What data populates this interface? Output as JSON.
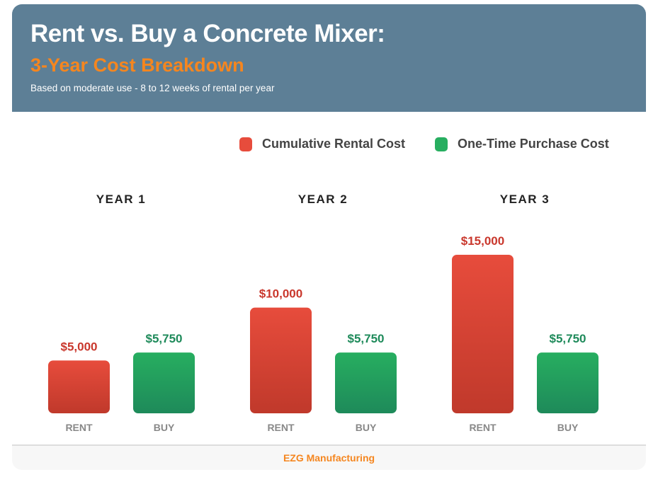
{
  "header": {
    "title": "Rent vs. Buy a Concrete Mixer:",
    "subtitle": "3-Year Cost Breakdown",
    "note": "Based on moderate use - 8 to 12 weeks of rental per year"
  },
  "footer": {
    "brand": "EZG Manufacturing"
  },
  "chart_data": {
    "type": "bar",
    "categories": [
      "YEAR 1",
      "YEAR 2",
      "YEAR 3"
    ],
    "bar_labels": [
      "RENT",
      "BUY"
    ],
    "series": [
      {
        "name": "Cumulative Rental Cost",
        "values": [
          5000,
          10000,
          15000
        ],
        "value_labels": [
          "$5,000",
          "$10,000",
          "$15,000"
        ],
        "color": "#e74c3c",
        "color_dark": "#c0392b",
        "label_color": "#c9372c"
      },
      {
        "name": "One-Time Purchase Cost",
        "values": [
          5750,
          5750,
          5750
        ],
        "value_labels": [
          "$5,750",
          "$5,750",
          "$5,750"
        ],
        "color": "#27ae60",
        "color_dark": "#1e8a5a",
        "label_color": "#1e8a5a"
      }
    ],
    "legend": "top-right",
    "grid": false
  }
}
